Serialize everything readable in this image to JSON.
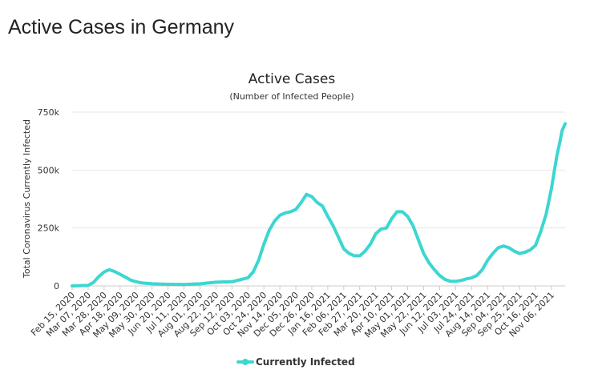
{
  "page": {
    "title": "Active Cases in Germany"
  },
  "colors": {
    "series": "#3dd6d0",
    "grid": "#e6e6e6",
    "axis": "#cccccc",
    "text": "#333333"
  },
  "chart_data": {
    "type": "line",
    "title": "Active Cases",
    "subtitle": "(Number of Infected People)",
    "xlabel": "",
    "ylabel": "Total Coronavirus Currently Infected",
    "ylim": [
      0,
      750000
    ],
    "yticks": [
      0,
      250000,
      500000,
      750000
    ],
    "ytick_labels": [
      "0",
      "250k",
      "500k",
      "750k"
    ],
    "xtick_labels": [
      "Feb 15, 2020",
      "Mar 07, 2020",
      "Mar 28, 2020",
      "Apr 18, 2020",
      "May 09, 2020",
      "May 30, 2020",
      "Jun 20, 2020",
      "Jul 11, 2020",
      "Aug 01, 2020",
      "Aug 22, 2020",
      "Sep 12, 2020",
      "Oct 03, 2020",
      "Oct 24, 2020",
      "Nov 14, 2020",
      "Dec 05, 2020",
      "Dec 26, 2020",
      "Jan 16, 2021",
      "Feb 06, 2021",
      "Feb 27, 2021",
      "Mar 20, 2021",
      "Apr 10, 2021",
      "May 01, 2021",
      "May 22, 2021",
      "Jun 12, 2021",
      "Jul 03, 2021",
      "Jul 24, 2021",
      "Aug 14, 2021",
      "Sep 04, 2021",
      "Sep 25, 2021",
      "Oct 16, 2021",
      "Nov 06, 2021"
    ],
    "x": [
      "2020-02-15",
      "2020-03-07",
      "2020-03-14",
      "2020-03-21",
      "2020-03-28",
      "2020-04-04",
      "2020-04-11",
      "2020-04-18",
      "2020-04-25",
      "2020-05-02",
      "2020-05-09",
      "2020-05-16",
      "2020-05-30",
      "2020-06-20",
      "2020-07-11",
      "2020-08-01",
      "2020-08-22",
      "2020-09-12",
      "2020-10-03",
      "2020-10-10",
      "2020-10-17",
      "2020-10-24",
      "2020-10-31",
      "2020-11-07",
      "2020-11-14",
      "2020-11-21",
      "2020-11-28",
      "2020-12-05",
      "2020-12-12",
      "2020-12-19",
      "2020-12-26",
      "2021-01-02",
      "2021-01-09",
      "2021-01-16",
      "2021-01-23",
      "2021-01-30",
      "2021-02-06",
      "2021-02-13",
      "2021-02-20",
      "2021-02-27",
      "2021-03-06",
      "2021-03-13",
      "2021-03-20",
      "2021-03-27",
      "2021-04-03",
      "2021-04-10",
      "2021-04-17",
      "2021-04-24",
      "2021-05-01",
      "2021-05-08",
      "2021-05-15",
      "2021-05-22",
      "2021-05-29",
      "2021-06-05",
      "2021-06-12",
      "2021-06-19",
      "2021-06-26",
      "2021-07-03",
      "2021-07-10",
      "2021-07-17",
      "2021-07-24",
      "2021-07-31",
      "2021-08-07",
      "2021-08-14",
      "2021-08-21",
      "2021-08-28",
      "2021-09-04",
      "2021-09-11",
      "2021-09-18",
      "2021-09-25",
      "2021-10-02",
      "2021-10-09",
      "2021-10-16",
      "2021-10-23",
      "2021-10-30",
      "2021-11-06",
      "2021-11-10",
      "2021-11-13",
      "2021-11-17",
      "2021-11-20",
      "2021-11-24"
    ],
    "series": [
      {
        "name": "Currently Infected",
        "values": [
          0,
          2000,
          15000,
          40000,
          60000,
          70000,
          62000,
          50000,
          38000,
          25000,
          18000,
          13000,
          9000,
          7000,
          6000,
          9000,
          16000,
          18000,
          35000,
          60000,
          110000,
          180000,
          240000,
          280000,
          305000,
          315000,
          320000,
          330000,
          360000,
          395000,
          385000,
          360000,
          345000,
          300000,
          260000,
          210000,
          160000,
          140000,
          130000,
          130000,
          150000,
          180000,
          225000,
          245000,
          250000,
          290000,
          320000,
          320000,
          300000,
          260000,
          200000,
          140000,
          100000,
          70000,
          45000,
          28000,
          20000,
          20000,
          23000,
          30000,
          35000,
          45000,
          70000,
          110000,
          140000,
          165000,
          172000,
          165000,
          150000,
          140000,
          145000,
          155000,
          175000,
          235000,
          310000,
          420000,
          500000,
          560000,
          620000,
          670000,
          700000
        ]
      }
    ],
    "legend": {
      "position": "bottom-center"
    },
    "grid": true
  }
}
